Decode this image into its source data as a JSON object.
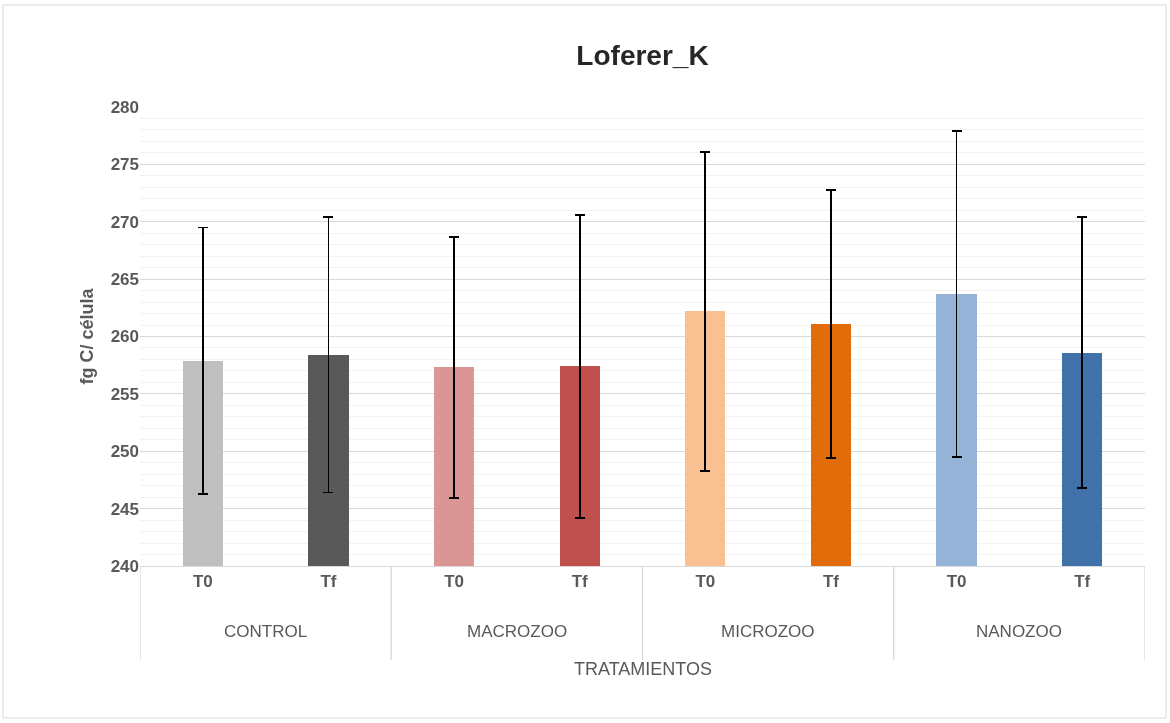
{
  "chart_data": {
    "type": "bar",
    "title": "Loferer_K",
    "xlabel": "TRATAMIENTOS",
    "ylabel": "fg C/ célula",
    "categories": [
      "T0",
      "Tf",
      "T0",
      "Tf",
      "T0",
      "Tf",
      "T0",
      "Tf"
    ],
    "values": [
      257.9,
      258.4,
      257.3,
      257.4,
      262.2,
      261.1,
      263.7,
      258.6
    ],
    "errors": [
      11.6,
      12.0,
      11.4,
      13.2,
      13.9,
      11.7,
      14.2,
      11.8
    ],
    "colors": [
      "#bfbfbf",
      "#595959",
      "#da9694",
      "#c0504d",
      "#f9c091",
      "#e26b0a",
      "#95b3d7",
      "#4071a8"
    ],
    "annotations": [
      "CONTROL",
      "MACROZOO",
      "MICROZOO",
      "NANOZOO"
    ],
    "ylim": [
      240,
      280
    ],
    "yticks": [
      240,
      245,
      250,
      255,
      260,
      265,
      270,
      275,
      280
    ],
    "grid": "y"
  }
}
